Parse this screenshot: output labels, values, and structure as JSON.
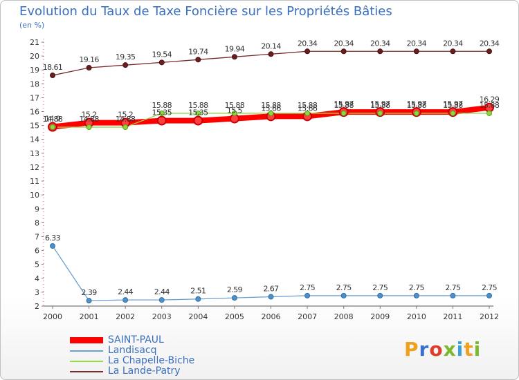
{
  "title": "Evolution du Taux de Taxe Foncière sur les Propriétés Bâties",
  "subtitle": "(en %)",
  "logo": {
    "text": "Proxiti",
    "colors": [
      "#f0a020",
      "#3a6fd0",
      "#e03c2a",
      "#7ab82e",
      "#3aa0d8",
      "#f0a020",
      "#7ab82e"
    ]
  },
  "chart_data": {
    "type": "line",
    "title": "Evolution du Taux de Taxe Foncière sur les Propriétés Bâties",
    "ylabel": "(en %)",
    "xlabel": "",
    "ylim": [
      2,
      21
    ],
    "y_ticks": [
      "2",
      "3",
      "4",
      "5",
      "6",
      "7",
      "8",
      "9",
      "10",
      "11",
      "12",
      "13",
      "14",
      "15",
      "16",
      "17",
      "18",
      "19",
      "20",
      "21"
    ],
    "grid": false,
    "legend_position": "bottom-left",
    "x": [
      "2000",
      "2001",
      "2002",
      "2003",
      "2004",
      "2005",
      "2006",
      "2007",
      "2008",
      "2009",
      "2010",
      "2011",
      "2012"
    ],
    "series": [
      {
        "name": "SAINT-PAUL",
        "color": "#ff0000",
        "values": [
          14.9,
          15.2,
          15.2,
          15.35,
          15.35,
          15.5,
          15.66,
          15.66,
          15.97,
          15.97,
          15.97,
          15.97,
          16.29
        ],
        "labels": [
          "14.9",
          "15.2",
          "15.2",
          "15.35",
          "15.35",
          "15.5",
          "15.66",
          "15.66",
          "15.97",
          "15.97",
          "15.97",
          "15.97",
          "16.29"
        ]
      },
      {
        "name": "Landisacq",
        "color": "#6aa0d0",
        "values": [
          6.33,
          2.39,
          2.44,
          2.44,
          2.51,
          2.59,
          2.67,
          2.75,
          2.75,
          2.75,
          2.75,
          2.75,
          2.75
        ],
        "labels": [
          "6.33",
          "2.39",
          "2.44",
          "2.44",
          "2.51",
          "2.59",
          "2.67",
          "2.75",
          "2.75",
          "2.75",
          "2.75",
          "2.75",
          "2.75"
        ]
      },
      {
        "name": "La Chapelle-Biche",
        "color": "#99d84a",
        "values": [
          14.88,
          14.88,
          14.88,
          15.88,
          15.88,
          15.88,
          15.88,
          15.88,
          15.88,
          15.88,
          15.88,
          15.88,
          15.88
        ],
        "labels": [
          "14.88",
          "14.88",
          "14.88",
          "15.88",
          "15.88",
          "15.88",
          "15.88",
          "15.88",
          "15.88",
          "15.88",
          "15.88",
          "15.88",
          "15.88"
        ]
      },
      {
        "name": "La Lande-Patry",
        "color": "#7a2a2a",
        "values": [
          18.61,
          19.16,
          19.35,
          19.54,
          19.74,
          19.94,
          20.14,
          20.34,
          20.34,
          20.34,
          20.34,
          20.34,
          20.34
        ],
        "labels": [
          "18.61",
          "19.16",
          "19.35",
          "19.54",
          "19.74",
          "19.94",
          "20.14",
          "20.34",
          "20.34",
          "20.34",
          "20.34",
          "20.34",
          "20.34"
        ]
      }
    ]
  }
}
